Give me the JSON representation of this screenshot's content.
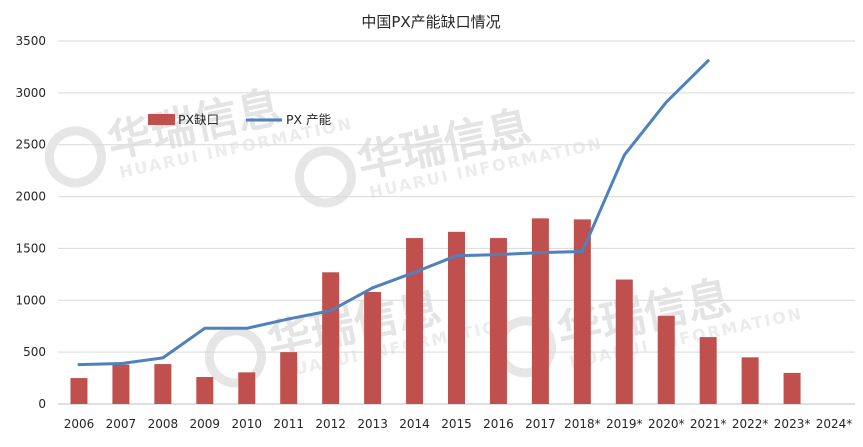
{
  "chart_data": {
    "type": "bar",
    "title": "中国PX产能缺口情况",
    "xlabel": "",
    "ylabel": "",
    "categories": [
      "2006",
      "2007",
      "2008",
      "2009",
      "2010",
      "2011",
      "2012",
      "2013",
      "2014",
      "2015",
      "2016",
      "2017",
      "2018*",
      "2019*",
      "2020*",
      "2021*",
      "2022*",
      "2023*",
      "2024*"
    ],
    "ylim": [
      0,
      3500
    ],
    "yticks": [
      "0",
      "500",
      "1000",
      "1500",
      "2000",
      "2500",
      "3000",
      "3500"
    ],
    "grid": true,
    "legend_position": "top-left",
    "series": [
      {
        "name": "PX缺口",
        "type": "bar",
        "color": "#c0504d",
        "values": [
          250,
          380,
          385,
          260,
          305,
          500,
          1270,
          1080,
          1600,
          1660,
          1600,
          1790,
          1780,
          1200,
          850,
          645,
          450,
          300,
          null
        ]
      },
      {
        "name": "PX 产能",
        "type": "line",
        "color": "#4f81bd",
        "values": [
          380,
          390,
          445,
          730,
          730,
          820,
          900,
          1120,
          1270,
          1430,
          1440,
          1460,
          1470,
          2400,
          2910,
          3310,
          null,
          null,
          null
        ]
      }
    ]
  },
  "watermark": {
    "text": "华瑞信息",
    "subtext": "HUARUI INFORMATION"
  }
}
